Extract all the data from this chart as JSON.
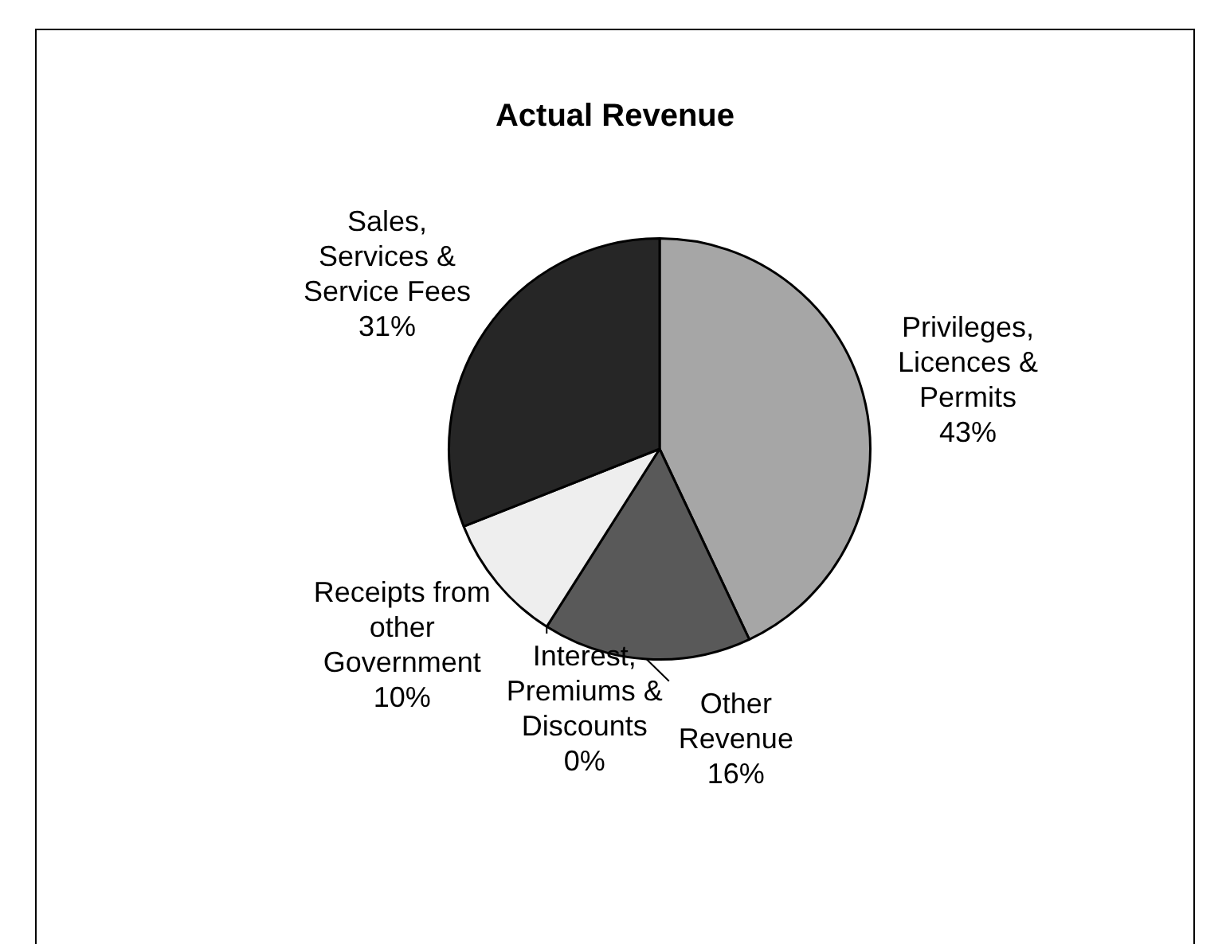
{
  "chart_data": {
    "type": "pie",
    "title": "Actual Revenue",
    "categories": [
      "Privileges, Licences & Permits",
      "Other Revenue",
      "Interest, Premiums & Discounts",
      "Receipts from other Government",
      "Sales, Services & Service Fees"
    ],
    "values": [
      43,
      16,
      0,
      10,
      31
    ],
    "value_labels": [
      "43%",
      "16%",
      "0%",
      "10%",
      "31%"
    ],
    "colors": [
      "#a6a6a6",
      "#595959",
      "#808080",
      "#eeeeee",
      "#262626"
    ]
  }
}
